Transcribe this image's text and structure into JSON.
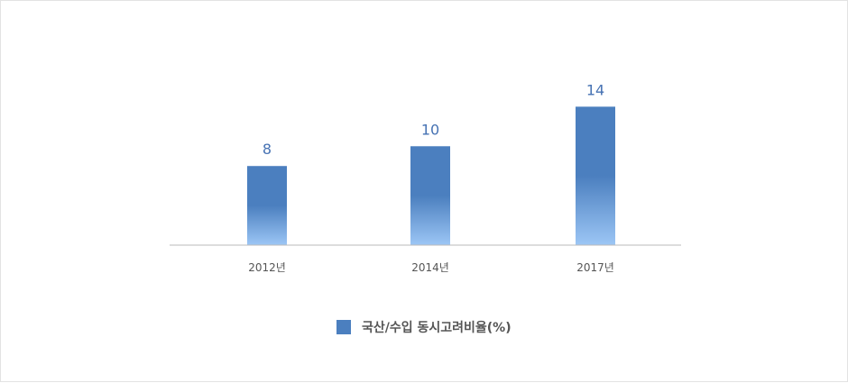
{
  "chart_data": {
    "type": "bar",
    "categories": [
      "2012년",
      "2014년",
      "2017년"
    ],
    "series": [
      {
        "name": "국산/수입 동시고려비율(%)",
        "values": [
          8,
          10,
          14
        ]
      }
    ],
    "ylim": [
      0,
      18.5
    ],
    "grid": false,
    "legend_position": "bottom",
    "colors": {
      "bar_top": "#4b7fbf",
      "bar_bottom": "#9cc6f5",
      "value_label": "#4672b3",
      "axis": "#bbbbbb",
      "tick_label": "#555555",
      "legend_swatch": "#4b7fbf"
    }
  }
}
